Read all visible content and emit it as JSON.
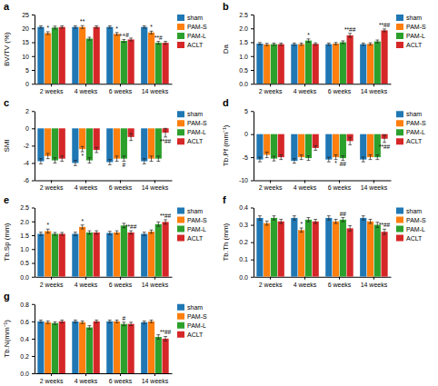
{
  "chart_data": [
    {
      "type": "bar",
      "title": "a",
      "ylabel": "BV/TV (%)",
      "categories": [
        "2 weeks",
        "4 weeks",
        "6 weeks",
        "14 weeks"
      ],
      "series": [
        {
          "name": "sham",
          "values": [
            20.5,
            20.5,
            20.5,
            20.5
          ],
          "errors": [
            0.4,
            0.4,
            0.4,
            0.4
          ]
        },
        {
          "name": "PAM-S",
          "values": [
            18.3,
            20.5,
            18.0,
            18.5
          ],
          "errors": [
            0.5,
            0.5,
            0.5,
            0.5
          ]
        },
        {
          "name": "PAM-L",
          "values": [
            20.3,
            16.3,
            15.5,
            14.8
          ],
          "errors": [
            0.5,
            0.5,
            0.5,
            0.5
          ]
        },
        {
          "name": "ACLT",
          "values": [
            20.5,
            20.5,
            16.0,
            14.8
          ],
          "errors": [
            0.4,
            0.4,
            0.5,
            0.5
          ]
        }
      ],
      "ylim": [
        0,
        25
      ],
      "yticks": [
        0,
        5,
        10,
        15,
        20,
        25
      ],
      "annotations": [
        {
          "category": "2 weeks",
          "series": "PAM-S",
          "text": "*"
        },
        {
          "category": "4 weeks",
          "series": "PAM-S",
          "text": "**"
        },
        {
          "category": "6 weeks",
          "series": "PAM-S",
          "text": "*"
        },
        {
          "category": "6 weeks",
          "series": "PAM-L",
          "text": "++#"
        },
        {
          "category": "14 weeks",
          "series": "PAM-S",
          "text": "*"
        },
        {
          "category": "14 weeks",
          "series": "PAM-L",
          "text": "**#"
        }
      ]
    },
    {
      "type": "bar",
      "title": "b",
      "ylabel": "Da",
      "categories": [
        "2 weeks",
        "4 weeks",
        "6 weeks",
        "14 weeks"
      ],
      "series": [
        {
          "name": "sham",
          "values": [
            1.45,
            1.43,
            1.43,
            1.43
          ],
          "errors": [
            0.04,
            0.04,
            0.04,
            0.04
          ]
        },
        {
          "name": "PAM-S",
          "values": [
            1.42,
            1.43,
            1.45,
            1.44
          ],
          "errors": [
            0.04,
            0.04,
            0.04,
            0.04
          ]
        },
        {
          "name": "PAM-L",
          "values": [
            1.43,
            1.56,
            1.5,
            1.53
          ],
          "errors": [
            0.04,
            0.06,
            0.05,
            0.05
          ]
        },
        {
          "name": "ACLT",
          "values": [
            1.43,
            1.44,
            1.75,
            1.93
          ],
          "errors": [
            0.04,
            0.04,
            0.07,
            0.05
          ]
        }
      ],
      "ylim": [
        0,
        2.5
      ],
      "yticks": [
        {
          "value": 0,
          "label": "0.0"
        },
        0.5,
        {
          "value": 1,
          "label": "1.0"
        },
        1.5,
        {
          "value": 2,
          "label": "2.0"
        },
        2.5
      ],
      "annotations": [
        {
          "category": "4 weeks",
          "series": "PAM-L",
          "text": "*"
        },
        {
          "category": "6 weeks",
          "series": "ACLT",
          "text": "**##"
        },
        {
          "category": "14 weeks",
          "series": "ACLT",
          "text": "**##"
        }
      ]
    },
    {
      "type": "bar",
      "title": "c",
      "ylabel": "SMI",
      "categories": [
        "2 weeks",
        "4 weeks",
        "6 weeks",
        "14 weeks"
      ],
      "series": [
        {
          "name": "sham",
          "values": [
            -3.8,
            -4.0,
            -3.9,
            -3.8
          ],
          "errors": [
            0.3,
            0.3,
            0.3,
            0.3
          ]
        },
        {
          "name": "PAM-S",
          "values": [
            -3.2,
            -2.4,
            -3.5,
            -3.5
          ],
          "errors": [
            0.3,
            0.3,
            0.3,
            0.3
          ]
        },
        {
          "name": "PAM-L",
          "values": [
            -3.7,
            -3.7,
            -3.5,
            -3.5
          ],
          "errors": [
            0.3,
            0.3,
            0.3,
            0.3
          ]
        },
        {
          "name": "ACLT",
          "values": [
            -3.5,
            -2.5,
            -1.0,
            -0.5
          ],
          "errors": [
            0.3,
            0.3,
            0.4,
            0.5
          ]
        }
      ],
      "ylim": [
        -6,
        2
      ],
      "yticks": [
        -6,
        -4,
        -2,
        0,
        2
      ],
      "annotations": [
        {
          "category": "4 weeks",
          "series": "PAM-S",
          "text": "*"
        },
        {
          "category": "6 weeks",
          "series": "PAM-L",
          "text": "#"
        },
        {
          "category": "14 weeks",
          "series": "ACLT",
          "text": "**##"
        }
      ]
    },
    {
      "type": "bar",
      "title": "d",
      "ylabel": "Tb.Pf (mm⁻¹)",
      "categories": [
        "2 weeks",
        "4 weeks",
        "6 weeks",
        "14 weeks"
      ],
      "series": [
        {
          "name": "sham",
          "values": [
            -5.5,
            -5.8,
            -5.5,
            -5.5
          ],
          "errors": [
            0.5,
            0.5,
            0.5,
            0.5
          ]
        },
        {
          "name": "PAM-S",
          "values": [
            -4.5,
            -5.0,
            -5.0,
            -5.0
          ],
          "errors": [
            0.6,
            0.5,
            0.5,
            0.5
          ]
        },
        {
          "name": "PAM-L",
          "values": [
            -5.3,
            -5.2,
            -5.2,
            -5.0
          ],
          "errors": [
            0.5,
            0.5,
            0.5,
            0.5
          ]
        },
        {
          "name": "ACLT",
          "values": [
            -5.0,
            -3.0,
            -1.5,
            -1.0
          ],
          "errors": [
            0.5,
            0.5,
            0.8,
            0.8
          ]
        }
      ],
      "ylim": [
        -10,
        5
      ],
      "yticks": [
        -10,
        -5,
        0,
        5
      ],
      "annotations": [
        {
          "category": "6 weeks",
          "series": "PAM-S",
          "text": "*"
        },
        {
          "category": "6 weeks",
          "series": "PAM-L",
          "text": "##"
        },
        {
          "category": "14 weeks",
          "series": "ACLT",
          "text": "**##"
        }
      ]
    },
    {
      "type": "bar",
      "title": "e",
      "ylabel": "Tb.Sp (mm)",
      "categories": [
        "2 weeks",
        "4 weeks",
        "6 weeks",
        "14 weeks"
      ],
      "series": [
        {
          "name": "sham",
          "values": [
            1.55,
            1.55,
            1.58,
            1.55
          ],
          "errors": [
            0.06,
            0.06,
            0.06,
            0.06
          ]
        },
        {
          "name": "PAM-S",
          "values": [
            1.65,
            1.8,
            1.6,
            1.63
          ],
          "errors": [
            0.07,
            0.07,
            0.06,
            0.06
          ]
        },
        {
          "name": "PAM-L",
          "values": [
            1.55,
            1.6,
            1.85,
            1.9
          ],
          "errors": [
            0.05,
            0.06,
            0.08,
            0.08
          ]
        },
        {
          "name": "ACLT",
          "values": [
            1.55,
            1.6,
            1.6,
            1.98
          ],
          "errors": [
            0.05,
            0.06,
            0.06,
            0.08
          ]
        }
      ],
      "ylim": [
        0,
        2.5
      ],
      "yticks": [
        {
          "value": 0,
          "label": "0.0"
        },
        0.5,
        {
          "value": 1,
          "label": "1.0"
        },
        1.5,
        {
          "value": 2,
          "label": "2.0"
        },
        2.5
      ],
      "annotations": [
        {
          "category": "2 weeks",
          "series": "PAM-S",
          "text": "*"
        },
        {
          "category": "4 weeks",
          "series": "PAM-S",
          "text": "*"
        },
        {
          "category": "6 weeks",
          "series": "ACLT",
          "text": "**##"
        },
        {
          "category": "14 weeks",
          "series": "ACLT",
          "text": "**##"
        }
      ]
    },
    {
      "type": "bar",
      "title": "f",
      "ylabel": "Tb.Th (mm)",
      "categories": [
        "2 weeks",
        "4 weeks",
        "6 weeks",
        "14 weeks"
      ],
      "series": [
        {
          "name": "sham",
          "values": [
            0.34,
            0.34,
            0.34,
            0.34
          ],
          "errors": [
            0.012,
            0.012,
            0.012,
            0.012
          ]
        },
        {
          "name": "PAM-S",
          "values": [
            0.31,
            0.27,
            0.32,
            0.32
          ],
          "errors": [
            0.012,
            0.012,
            0.012,
            0.012
          ]
        },
        {
          "name": "PAM-L",
          "values": [
            0.34,
            0.33,
            0.33,
            0.3
          ],
          "errors": [
            0.012,
            0.012,
            0.012,
            0.015
          ]
        },
        {
          "name": "ACLT",
          "values": [
            0.32,
            0.32,
            0.28,
            0.26
          ],
          "errors": [
            0.012,
            0.012,
            0.015,
            0.015
          ]
        }
      ],
      "ylim": [
        0,
        0.4
      ],
      "yticks": [
        {
          "value": 0,
          "label": "0.0"
        },
        0.1,
        0.2,
        0.3,
        0.4
      ],
      "annotations": [
        {
          "category": "4 weeks",
          "series": "PAM-S",
          "text": "*"
        },
        {
          "category": "6 weeks",
          "series": "PAM-L",
          "text": "##"
        },
        {
          "category": "14 weeks",
          "series": "ACLT",
          "text": "**##"
        }
      ]
    },
    {
      "type": "bar",
      "title": "g",
      "ylabel": "Tb.N(mm⁻¹)",
      "categories": [
        "2 weeks",
        "4 weeks",
        "6 weeks",
        "14 weeks"
      ],
      "series": [
        {
          "name": "sham",
          "values": [
            0.6,
            0.6,
            0.6,
            0.59
          ],
          "errors": [
            0.015,
            0.015,
            0.015,
            0.015
          ]
        },
        {
          "name": "PAM-S",
          "values": [
            0.59,
            0.59,
            0.6,
            0.6
          ],
          "errors": [
            0.015,
            0.015,
            0.015,
            0.015
          ]
        },
        {
          "name": "PAM-L",
          "values": [
            0.58,
            0.53,
            0.57,
            0.42
          ],
          "errors": [
            0.015,
            0.02,
            0.02,
            0.025
          ]
        },
        {
          "name": "ACLT",
          "values": [
            0.6,
            0.6,
            0.57,
            0.4
          ],
          "errors": [
            0.015,
            0.015,
            0.02,
            0.025
          ]
        }
      ],
      "ylim": [
        0,
        0.8
      ],
      "yticks": [
        {
          "value": 0,
          "label": "0.0"
        },
        0.2,
        0.4,
        0.6,
        0.8
      ],
      "annotations": [
        {
          "category": "6 weeks",
          "series": "PAM-L",
          "text": "#"
        },
        {
          "category": "14 weeks",
          "series": "ACLT",
          "text": "**##"
        }
      ]
    }
  ]
}
